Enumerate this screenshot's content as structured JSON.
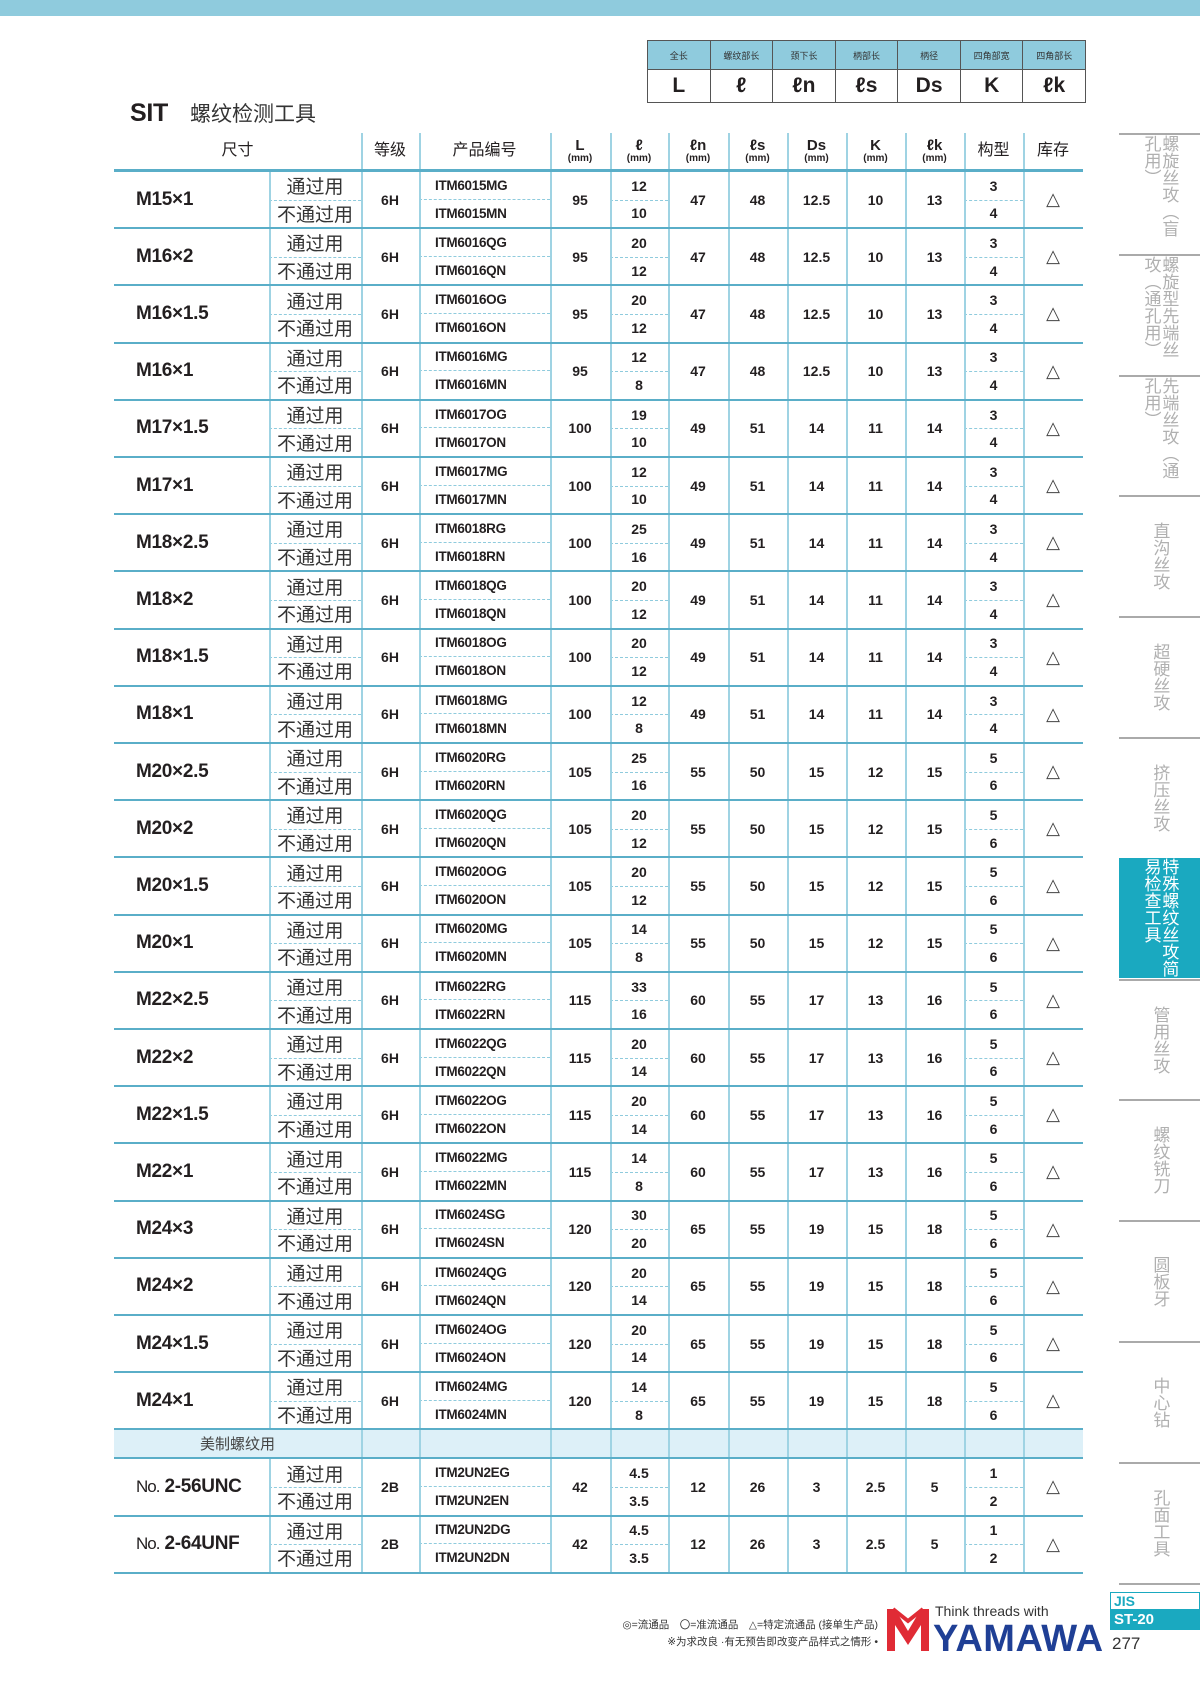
{
  "colors": {
    "accent": "#1aa9c0",
    "header_band": "#8fcbdd",
    "row_rule": "#5aaec8",
    "brand_blue": "#1f3f95",
    "brand_red": "#e02b35"
  },
  "dimension_legend": [
    {
      "label": "全长",
      "symbol": "L"
    },
    {
      "label": "螺纹部长",
      "symbol": "ℓ"
    },
    {
      "label": "颈下长",
      "symbol": "ℓn"
    },
    {
      "label": "柄部长",
      "symbol": "ℓs"
    },
    {
      "label": "柄径",
      "symbol": "Ds"
    },
    {
      "label": "四角部宽",
      "symbol": "K"
    },
    {
      "label": "四角部长",
      "symbol": "ℓk"
    }
  ],
  "title": {
    "code": "SIT",
    "name": "螺纹检测工具"
  },
  "table": {
    "headers": [
      {
        "label": "尺寸"
      },
      {
        "label": "等级"
      },
      {
        "label": "产品编号"
      },
      {
        "label": "L",
        "unit": "(mm)"
      },
      {
        "label": "ℓ",
        "unit": "(mm)"
      },
      {
        "label": "ℓn",
        "unit": "(mm)"
      },
      {
        "label": "ℓs",
        "unit": "(mm)"
      },
      {
        "label": "Ds",
        "unit": "(mm)"
      },
      {
        "label": "K",
        "unit": "(mm)"
      },
      {
        "label": "ℓk",
        "unit": "(mm)"
      },
      {
        "label": "构型"
      },
      {
        "label": "库存"
      }
    ],
    "go_label": "通过用",
    "nogo_label": "不通过用",
    "rows": [
      {
        "prefix": "",
        "size": "M15×1",
        "grade": "6H",
        "codes": [
          "ITM6015MG",
          "ITM6015MN"
        ],
        "L": "95",
        "l": [
          "12",
          "10"
        ],
        "ln": "47",
        "ls": "48",
        "Ds": "12.5",
        "K": "10",
        "lk": "13",
        "type": [
          "3",
          "4"
        ],
        "stock": "△"
      },
      {
        "prefix": "",
        "size": "M16×2",
        "grade": "6H",
        "codes": [
          "ITM6016QG",
          "ITM6016QN"
        ],
        "L": "95",
        "l": [
          "20",
          "12"
        ],
        "ln": "47",
        "ls": "48",
        "Ds": "12.5",
        "K": "10",
        "lk": "13",
        "type": [
          "3",
          "4"
        ],
        "stock": "△"
      },
      {
        "prefix": "",
        "size": "M16×1.5",
        "grade": "6H",
        "codes": [
          "ITM6016OG",
          "ITM6016ON"
        ],
        "L": "95",
        "l": [
          "20",
          "12"
        ],
        "ln": "47",
        "ls": "48",
        "Ds": "12.5",
        "K": "10",
        "lk": "13",
        "type": [
          "3",
          "4"
        ],
        "stock": "△"
      },
      {
        "prefix": "",
        "size": "M16×1",
        "grade": "6H",
        "codes": [
          "ITM6016MG",
          "ITM6016MN"
        ],
        "L": "95",
        "l": [
          "12",
          "8"
        ],
        "ln": "47",
        "ls": "48",
        "Ds": "12.5",
        "K": "10",
        "lk": "13",
        "type": [
          "3",
          "4"
        ],
        "stock": "△"
      },
      {
        "prefix": "",
        "size": "M17×1.5",
        "grade": "6H",
        "codes": [
          "ITM6017OG",
          "ITM6017ON"
        ],
        "L": "100",
        "l": [
          "19",
          "10"
        ],
        "ln": "49",
        "ls": "51",
        "Ds": "14",
        "K": "11",
        "lk": "14",
        "type": [
          "3",
          "4"
        ],
        "stock": "△"
      },
      {
        "prefix": "",
        "size": "M17×1",
        "grade": "6H",
        "codes": [
          "ITM6017MG",
          "ITM6017MN"
        ],
        "L": "100",
        "l": [
          "12",
          "10"
        ],
        "ln": "49",
        "ls": "51",
        "Ds": "14",
        "K": "11",
        "lk": "14",
        "type": [
          "3",
          "4"
        ],
        "stock": "△"
      },
      {
        "prefix": "",
        "size": "M18×2.5",
        "grade": "6H",
        "codes": [
          "ITM6018RG",
          "ITM6018RN"
        ],
        "L": "100",
        "l": [
          "25",
          "16"
        ],
        "ln": "49",
        "ls": "51",
        "Ds": "14",
        "K": "11",
        "lk": "14",
        "type": [
          "3",
          "4"
        ],
        "stock": "△"
      },
      {
        "prefix": "",
        "size": "M18×2",
        "grade": "6H",
        "codes": [
          "ITM6018QG",
          "ITM6018QN"
        ],
        "L": "100",
        "l": [
          "20",
          "12"
        ],
        "ln": "49",
        "ls": "51",
        "Ds": "14",
        "K": "11",
        "lk": "14",
        "type": [
          "3",
          "4"
        ],
        "stock": "△"
      },
      {
        "prefix": "",
        "size": "M18×1.5",
        "grade": "6H",
        "codes": [
          "ITM6018OG",
          "ITM6018ON"
        ],
        "L": "100",
        "l": [
          "20",
          "12"
        ],
        "ln": "49",
        "ls": "51",
        "Ds": "14",
        "K": "11",
        "lk": "14",
        "type": [
          "3",
          "4"
        ],
        "stock": "△"
      },
      {
        "prefix": "",
        "size": "M18×1",
        "grade": "6H",
        "codes": [
          "ITM6018MG",
          "ITM6018MN"
        ],
        "L": "100",
        "l": [
          "12",
          "8"
        ],
        "ln": "49",
        "ls": "51",
        "Ds": "14",
        "K": "11",
        "lk": "14",
        "type": [
          "3",
          "4"
        ],
        "stock": "△"
      },
      {
        "prefix": "",
        "size": "M20×2.5",
        "grade": "6H",
        "codes": [
          "ITM6020RG",
          "ITM6020RN"
        ],
        "L": "105",
        "l": [
          "25",
          "16"
        ],
        "ln": "55",
        "ls": "50",
        "Ds": "15",
        "K": "12",
        "lk": "15",
        "type": [
          "5",
          "6"
        ],
        "stock": "△"
      },
      {
        "prefix": "",
        "size": "M20×2",
        "grade": "6H",
        "codes": [
          "ITM6020QG",
          "ITM6020QN"
        ],
        "L": "105",
        "l": [
          "20",
          "12"
        ],
        "ln": "55",
        "ls": "50",
        "Ds": "15",
        "K": "12",
        "lk": "15",
        "type": [
          "5",
          "6"
        ],
        "stock": "△"
      },
      {
        "prefix": "",
        "size": "M20×1.5",
        "grade": "6H",
        "codes": [
          "ITM6020OG",
          "ITM6020ON"
        ],
        "L": "105",
        "l": [
          "20",
          "12"
        ],
        "ln": "55",
        "ls": "50",
        "Ds": "15",
        "K": "12",
        "lk": "15",
        "type": [
          "5",
          "6"
        ],
        "stock": "△"
      },
      {
        "prefix": "",
        "size": "M20×1",
        "grade": "6H",
        "codes": [
          "ITM6020MG",
          "ITM6020MN"
        ],
        "L": "105",
        "l": [
          "14",
          "8"
        ],
        "ln": "55",
        "ls": "50",
        "Ds": "15",
        "K": "12",
        "lk": "15",
        "type": [
          "5",
          "6"
        ],
        "stock": "△"
      },
      {
        "prefix": "",
        "size": "M22×2.5",
        "grade": "6H",
        "codes": [
          "ITM6022RG",
          "ITM6022RN"
        ],
        "L": "115",
        "l": [
          "33",
          "16"
        ],
        "ln": "60",
        "ls": "55",
        "Ds": "17",
        "K": "13",
        "lk": "16",
        "type": [
          "5",
          "6"
        ],
        "stock": "△"
      },
      {
        "prefix": "",
        "size": "M22×2",
        "grade": "6H",
        "codes": [
          "ITM6022QG",
          "ITM6022QN"
        ],
        "L": "115",
        "l": [
          "20",
          "14"
        ],
        "ln": "60",
        "ls": "55",
        "Ds": "17",
        "K": "13",
        "lk": "16",
        "type": [
          "5",
          "6"
        ],
        "stock": "△"
      },
      {
        "prefix": "",
        "size": "M22×1.5",
        "grade": "6H",
        "codes": [
          "ITM6022OG",
          "ITM6022ON"
        ],
        "L": "115",
        "l": [
          "20",
          "14"
        ],
        "ln": "60",
        "ls": "55",
        "Ds": "17",
        "K": "13",
        "lk": "16",
        "type": [
          "5",
          "6"
        ],
        "stock": "△"
      },
      {
        "prefix": "",
        "size": "M22×1",
        "grade": "6H",
        "codes": [
          "ITM6022MG",
          "ITM6022MN"
        ],
        "L": "115",
        "l": [
          "14",
          "8"
        ],
        "ln": "60",
        "ls": "55",
        "Ds": "17",
        "K": "13",
        "lk": "16",
        "type": [
          "5",
          "6"
        ],
        "stock": "△"
      },
      {
        "prefix": "",
        "size": "M24×3",
        "grade": "6H",
        "codes": [
          "ITM6024SG",
          "ITM6024SN"
        ],
        "L": "120",
        "l": [
          "30",
          "20"
        ],
        "ln": "65",
        "ls": "55",
        "Ds": "19",
        "K": "15",
        "lk": "18",
        "type": [
          "5",
          "6"
        ],
        "stock": "△"
      },
      {
        "prefix": "",
        "size": "M24×2",
        "grade": "6H",
        "codes": [
          "ITM6024QG",
          "ITM6024QN"
        ],
        "L": "120",
        "l": [
          "20",
          "14"
        ],
        "ln": "65",
        "ls": "55",
        "Ds": "19",
        "K": "15",
        "lk": "18",
        "type": [
          "5",
          "6"
        ],
        "stock": "△"
      },
      {
        "prefix": "",
        "size": "M24×1.5",
        "grade": "6H",
        "codes": [
          "ITM6024OG",
          "ITM6024ON"
        ],
        "L": "120",
        "l": [
          "20",
          "14"
        ],
        "ln": "65",
        "ls": "55",
        "Ds": "19",
        "K": "15",
        "lk": "18",
        "type": [
          "5",
          "6"
        ],
        "stock": "△"
      },
      {
        "prefix": "",
        "size": "M24×1",
        "grade": "6H",
        "codes": [
          "ITM6024MG",
          "ITM6024MN"
        ],
        "L": "120",
        "l": [
          "14",
          "8"
        ],
        "ln": "65",
        "ls": "55",
        "Ds": "19",
        "K": "15",
        "lk": "18",
        "type": [
          "5",
          "6"
        ],
        "stock": "△"
      }
    ],
    "section_label": "美制螺纹用",
    "us_rows": [
      {
        "prefix": "No.",
        "size": "2-56UNC",
        "grade": "2B",
        "codes": [
          "ITM2UN2EG",
          "ITM2UN2EN"
        ],
        "L": "42",
        "l": [
          "4.5",
          "3.5"
        ],
        "ln": "12",
        "ls": "26",
        "Ds": "3",
        "K": "2.5",
        "lk": "5",
        "type": [
          "1",
          "2"
        ],
        "stock": "△"
      },
      {
        "prefix": "No.",
        "size": "2-64UNF",
        "grade": "2B",
        "codes": [
          "ITM2UN2DG",
          "ITM2UN2DN"
        ],
        "L": "42",
        "l": [
          "4.5",
          "3.5"
        ],
        "ln": "12",
        "ls": "26",
        "Ds": "3",
        "K": "2.5",
        "lk": "5",
        "type": [
          "1",
          "2"
        ],
        "stock": "△"
      }
    ]
  },
  "sidebar": [
    {
      "label": "螺旋丝攻（盲孔用）",
      "active": false
    },
    {
      "label": "螺旋型先端丝攻（通孔用）",
      "active": false
    },
    {
      "label": "先端丝攻（通孔用）",
      "active": false
    },
    {
      "label": "直沟丝攻",
      "active": false
    },
    {
      "label": "超硬丝攻",
      "active": false
    },
    {
      "label": "挤压丝攻",
      "active": false
    },
    {
      "label": "特殊螺纹丝攻简易检查工具",
      "active": true
    },
    {
      "label": "管用丝攻",
      "active": false
    },
    {
      "label": "螺纹铣刀",
      "active": false
    },
    {
      "label": "圆板牙",
      "active": false
    },
    {
      "label": "中心钻",
      "active": false
    },
    {
      "label": "孔面工具",
      "active": false
    }
  ],
  "footer": {
    "legend": "◎=流通品　〇=准流通品　△=特定流通品 (接单生产品)",
    "note": "※为求改良 ·有无预告即改变产品样式之情形 •",
    "slogan": "Think threads with",
    "brand": "YAMAWA",
    "standard": "JIS",
    "section": "ST-20",
    "page": "277"
  }
}
